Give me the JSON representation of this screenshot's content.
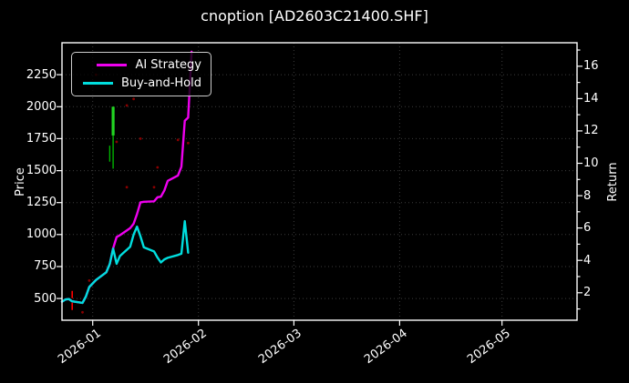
{
  "title": "cnoption [AD2603C21400.SHF]",
  "colors": {
    "background": "#000000",
    "text": "#ffffff",
    "grid": "#3c3c3c",
    "spine": "#ffffff",
    "ai_strategy": "#ee00ee",
    "buy_and_hold": "#00dede",
    "candle_green": "#00b400",
    "candle_green_bright": "#22d422",
    "marker_red": "#ff0000",
    "dot_red": "#8b0000",
    "legend_border": "#cccccc"
  },
  "chart_data": {
    "type": "line",
    "title": "cnoption [AD2603C21400.SHF]",
    "grid": true,
    "legend_position": "upper-left",
    "x_axis": {
      "start": "2025-12-23",
      "end": "2026-05-23",
      "ticks": [
        {
          "date": "2026-01-01",
          "label": "2026-01"
        },
        {
          "date": "2026-02-01",
          "label": "2026-02"
        },
        {
          "date": "2026-03-01",
          "label": "2026-03"
        },
        {
          "date": "2026-04-01",
          "label": "2026-04"
        },
        {
          "date": "2026-05-01",
          "label": "2026-05"
        }
      ]
    },
    "y_left": {
      "label": "Price",
      "range": [
        330,
        2500
      ],
      "ticks": [
        500,
        750,
        1000,
        1250,
        1500,
        1750,
        2000,
        2250
      ]
    },
    "y_right": {
      "label": "Return",
      "range": [
        0.3,
        17.45
      ],
      "ticks": [
        2,
        4,
        6,
        8,
        10,
        12,
        14,
        16
      ],
      "minor_ticks": [
        1,
        3,
        5,
        7,
        9,
        11,
        13,
        15,
        17
      ]
    },
    "series": [
      {
        "name": "AI Strategy",
        "color": "#ee00ee",
        "dates": [
          "2025-12-23",
          "2025-12-24",
          "2025-12-25",
          "2025-12-26",
          "2025-12-29",
          "2025-12-30",
          "2025-12-31",
          "2026-01-02",
          "2026-01-05",
          "2026-01-06",
          "2026-01-07",
          "2026-01-08",
          "2026-01-09",
          "2026-01-12",
          "2026-01-13",
          "2026-01-14",
          "2026-01-15",
          "2026-01-16",
          "2026-01-19",
          "2026-01-20",
          "2026-01-21",
          "2026-01-22",
          "2026-01-23",
          "2026-01-26",
          "2026-01-27",
          "2026-01-28",
          "2026-01-29",
          "2026-01-30"
        ],
        "values": [
          475,
          492,
          496,
          478,
          466,
          515,
          590,
          645,
          705,
          770,
          892,
          980,
          995,
          1050,
          1085,
          1160,
          1252,
          1256,
          1260,
          1292,
          1296,
          1345,
          1420,
          1462,
          1530,
          1890,
          1915,
          2430
        ]
      },
      {
        "name": "Buy-and-Hold",
        "color": "#00dede",
        "dates": [
          "2025-12-23",
          "2025-12-24",
          "2025-12-25",
          "2025-12-26",
          "2025-12-29",
          "2025-12-30",
          "2025-12-31",
          "2026-01-02",
          "2026-01-05",
          "2026-01-06",
          "2026-01-07",
          "2026-01-08",
          "2026-01-09",
          "2026-01-12",
          "2026-01-13",
          "2026-01-14",
          "2026-01-15",
          "2026-01-16",
          "2026-01-19",
          "2026-01-20",
          "2026-01-21",
          "2026-01-22",
          "2026-01-23",
          "2026-01-26",
          "2026-01-27",
          "2026-01-28",
          "2026-01-29"
        ],
        "values": [
          475,
          492,
          496,
          478,
          466,
          515,
          590,
          645,
          705,
          770,
          890,
          772,
          832,
          905,
          1000,
          1062,
          985,
          900,
          868,
          820,
          782,
          806,
          818,
          840,
          850,
          1105,
          858
        ]
      }
    ],
    "annotations": {
      "green_bars": [
        {
          "date": "2026-01-06",
          "low": 1570,
          "high": 1695,
          "weight": "thin"
        },
        {
          "date": "2026-01-07",
          "low": 1515,
          "high": 2000,
          "weight": "thin"
        },
        {
          "date": "2026-01-07",
          "low": 1775,
          "high": 2000,
          "weight": "thick"
        }
      ],
      "red_dashed_line": {
        "date": "2025-12-26",
        "low": 380,
        "high": 560
      },
      "red_dots": [
        {
          "date": "2026-01-02",
          "price": 2250
        },
        {
          "date": "2026-01-11",
          "price": 2010
        },
        {
          "date": "2026-01-13",
          "price": 2060
        },
        {
          "date": "2026-01-08",
          "price": 1725
        },
        {
          "date": "2026-01-15",
          "price": 1750
        },
        {
          "date": "2026-01-20",
          "price": 1525
        },
        {
          "date": "2026-01-26",
          "price": 1740
        },
        {
          "date": "2026-01-29",
          "price": 1715
        },
        {
          "date": "2026-01-19",
          "price": 1370
        },
        {
          "date": "2026-01-11",
          "price": 1370
        },
        {
          "date": "2025-12-31",
          "price": 640
        },
        {
          "date": "2025-12-29",
          "price": 392
        }
      ]
    }
  }
}
